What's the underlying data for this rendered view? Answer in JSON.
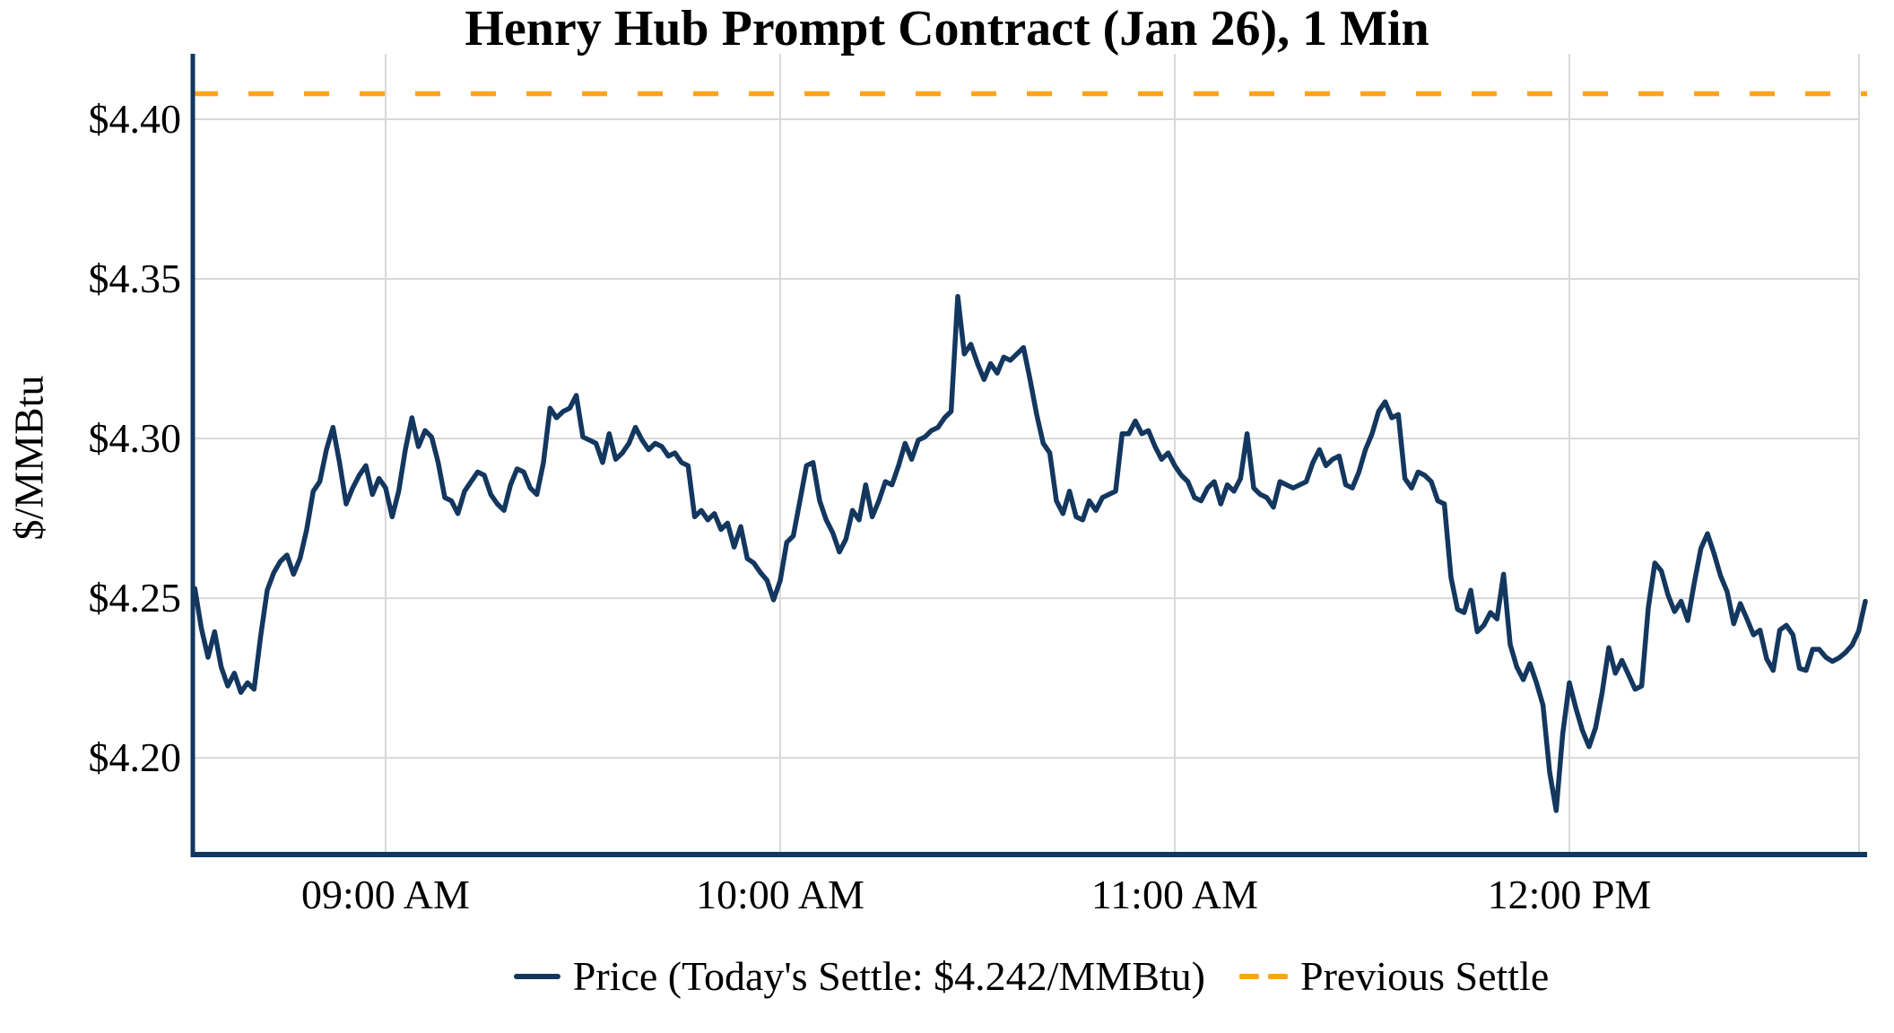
{
  "title": "Henry Hub Prompt Contract (Jan 26), 1 Min",
  "y_axis": {
    "label": "$/MMBtu",
    "tick_labels": [
      "$4.40",
      "$4.35",
      "$4.30",
      "$4.25",
      "$4.20"
    ],
    "tick_values": [
      4.4,
      4.35,
      4.3,
      4.25,
      4.2
    ]
  },
  "x_axis": {
    "tick_labels": [
      "09:00 AM",
      "10:00 AM",
      "11:00 AM",
      "12:00 PM"
    ],
    "tick_minutes": [
      29,
      89,
      149,
      209
    ]
  },
  "legend": {
    "price_label": "Price (Today's Settle: $4.242/MMBtu)",
    "previous_settle_label": "Previous Settle"
  },
  "colors": {
    "price": "#13375E",
    "previous_settle": "#FFA41B",
    "grid": "#D9D9D9",
    "text": "#000000"
  },
  "chart_data": {
    "type": "line",
    "title": "Henry Hub Prompt Contract (Jan 26), 1 Min",
    "xlabel": "",
    "ylabel": "$/MMBtu",
    "x_start": "08:31 AM",
    "x_end": "12:45 PM",
    "interval_minutes": 1,
    "x_tick_labels": [
      "09:00 AM",
      "10:00 AM",
      "11:00 AM",
      "12:00 PM"
    ],
    "ylim": [
      4.1697,
      4.4205
    ],
    "grid": true,
    "legend_position": "bottom",
    "previous_settle": 4.408,
    "todays_settle": 4.242,
    "series": [
      {
        "name": "Price",
        "values": [
          4.253,
          4.2405,
          4.2315,
          4.2395,
          4.2285,
          4.2225,
          4.2265,
          4.2205,
          4.2235,
          4.2215,
          4.238,
          4.2525,
          4.258,
          4.2615,
          4.2635,
          4.2575,
          4.2625,
          4.2715,
          4.2835,
          4.2865,
          4.2965,
          4.3035,
          4.2925,
          4.2795,
          4.2845,
          4.2885,
          4.2915,
          4.2825,
          4.2875,
          4.2845,
          4.2755,
          4.2835,
          4.2965,
          4.3065,
          4.2975,
          4.3025,
          4.3005,
          4.2925,
          4.2815,
          4.2805,
          4.2765,
          4.2835,
          4.2865,
          4.2895,
          4.2885,
          4.2825,
          4.2795,
          4.2775,
          4.2855,
          4.2905,
          4.2895,
          4.2845,
          4.2825,
          4.2925,
          4.3095,
          4.3065,
          4.3085,
          4.3095,
          4.3135,
          4.3005,
          4.2995,
          4.2985,
          4.2925,
          4.3015,
          4.2935,
          4.2955,
          4.2985,
          4.3035,
          4.2995,
          4.2965,
          4.2985,
          4.2975,
          4.2945,
          4.2955,
          4.2925,
          4.2915,
          4.2755,
          4.2775,
          4.2745,
          4.2765,
          4.2715,
          4.2735,
          4.266,
          4.2724,
          4.2624,
          4.261,
          4.258,
          4.2556,
          4.2495,
          4.2555,
          4.2675,
          4.2695,
          4.2805,
          4.2915,
          4.2925,
          4.2805,
          4.2745,
          4.2705,
          4.2645,
          4.2685,
          4.2775,
          4.2745,
          4.2855,
          4.2755,
          4.2805,
          4.2865,
          4.2855,
          4.2915,
          4.2985,
          4.2935,
          4.2995,
          4.3005,
          4.3025,
          4.3035,
          4.3065,
          4.3085,
          4.3445,
          4.3265,
          4.3295,
          4.3235,
          4.3185,
          4.3235,
          4.3205,
          4.3255,
          4.3245,
          4.3265,
          4.3285,
          4.3185,
          4.3075,
          4.2985,
          4.2955,
          4.2805,
          4.2765,
          4.2835,
          4.2755,
          4.2745,
          4.2805,
          4.2775,
          4.2815,
          4.2825,
          4.2835,
          4.3015,
          4.3015,
          4.3055,
          4.3015,
          4.3025,
          4.2975,
          4.2935,
          4.2955,
          4.2915,
          4.2885,
          4.2865,
          4.2815,
          4.2805,
          4.2845,
          4.2865,
          4.2795,
          4.2855,
          4.2835,
          4.2875,
          4.3015,
          4.2845,
          4.2825,
          4.2815,
          4.2785,
          4.2865,
          4.2855,
          4.2845,
          4.2855,
          4.2865,
          4.2925,
          4.2965,
          4.2915,
          4.2935,
          4.2945,
          4.2855,
          4.2845,
          4.2895,
          4.2965,
          4.3015,
          4.3085,
          4.3115,
          4.3065,
          4.3075,
          4.2875,
          4.2845,
          4.2895,
          4.2885,
          4.2865,
          4.2805,
          4.2795,
          4.2565,
          4.2465,
          4.2455,
          4.2525,
          4.2395,
          4.2415,
          4.2455,
          4.2435,
          4.2575,
          4.2355,
          4.2285,
          4.2245,
          4.2295,
          4.2235,
          4.2165,
          4.1955,
          4.1835,
          4.2075,
          4.2235,
          4.2155,
          4.2085,
          4.2035,
          4.2095,
          4.2205,
          4.2345,
          4.2265,
          4.2305,
          4.226,
          4.2215,
          4.2225,
          4.247,
          4.261,
          4.2585,
          4.251,
          4.2458,
          4.249,
          4.243,
          4.2548,
          4.2655,
          4.2702,
          4.264,
          4.257,
          4.252,
          4.242,
          4.2483,
          4.2435,
          4.2385,
          4.24,
          4.231,
          4.2274,
          4.24,
          4.2415,
          4.2385,
          4.228,
          4.2274,
          4.234,
          4.234,
          4.2315,
          4.2302,
          4.2313,
          4.233,
          4.2353,
          4.2397,
          4.249
        ]
      }
    ]
  }
}
